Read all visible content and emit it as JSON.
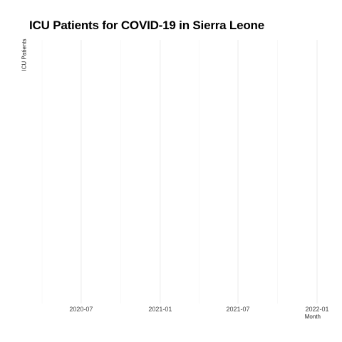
{
  "chart_data": {
    "type": "line",
    "title": "ICU Patients for COVID-19 in Sierra Leone",
    "xlabel": "Month",
    "ylabel": "ICU Patients",
    "x_tick_labels": [
      "2020-07",
      "2021-01",
      "2021-07",
      "2022-01"
    ],
    "x_ticks": [
      "2020-07-01",
      "2021-01-01",
      "2021-07-01",
      "2022-01-01"
    ],
    "xlim": [
      "2020-04-01",
      "2022-01-01"
    ],
    "series": [],
    "grid": true,
    "colors": {
      "grid_major": "#ebebeb",
      "grid_minor": "#f4f4f4",
      "text": "#444444"
    }
  }
}
